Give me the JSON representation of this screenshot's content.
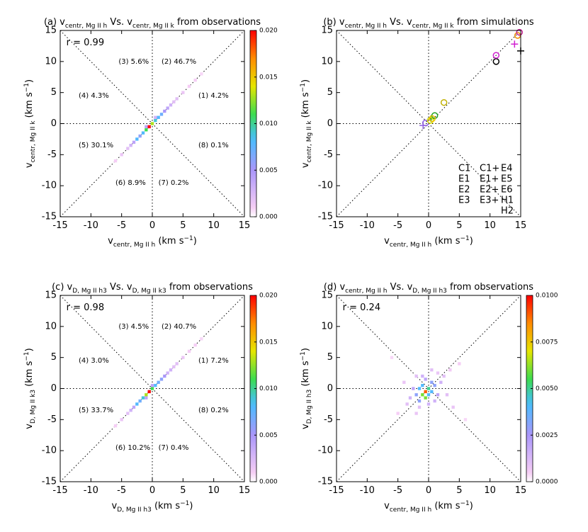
{
  "chart_data": [
    {
      "type": "heatmap",
      "title": [
        {
          "text": "(a) v"
        },
        {
          "text": "centr, Mg II h",
          "shift": "sub"
        },
        {
          "text": " Vs. v"
        },
        {
          "text": "centr, Mg II k",
          "shift": "sub"
        },
        {
          "text": " from observations"
        }
      ],
      "xlabel": [
        {
          "text": "v"
        },
        {
          "text": "centr, Mg II h",
          "shift": "sub"
        },
        {
          "text": " (km s"
        },
        {
          "text": "−1",
          "shift": "sup"
        },
        {
          "text": ")"
        }
      ],
      "ylabel": [
        {
          "text": "v"
        },
        {
          "text": "centr, Mg II k",
          "shift": "sub"
        },
        {
          "text": " (km s"
        },
        {
          "text": "−1",
          "shift": "sup"
        },
        {
          "text": ")"
        }
      ],
      "xlim": [
        -15,
        15
      ],
      "ylim": [
        -15,
        15
      ],
      "xticks": [
        -15,
        -10,
        -5,
        0,
        5,
        10,
        15
      ],
      "yticks": [
        -15,
        -10,
        -5,
        0,
        5,
        10,
        15
      ],
      "clim": [
        0,
        0.02
      ],
      "cticks": [
        {
          "value": 0,
          "label": "0.000"
        },
        {
          "value": 0.005,
          "label": "0.005"
        },
        {
          "value": 0.01,
          "label": "0.010"
        },
        {
          "value": 0.015,
          "label": "0.015"
        },
        {
          "value": 0.02,
          "label": "0.020"
        }
      ],
      "x": [
        -0.5,
        0,
        -1,
        0.5,
        -1.5,
        1,
        -2,
        1.5,
        -2.5,
        2,
        -3,
        2.5,
        3,
        -3.5,
        3.5,
        4,
        -4,
        5,
        -5,
        6,
        7,
        -6,
        8,
        0.5,
        -1
      ],
      "y": [
        -0.5,
        0,
        -1,
        0.5,
        -1.5,
        1,
        -2,
        1.5,
        -2.5,
        2,
        -3,
        2.5,
        3,
        -3.5,
        3.5,
        4,
        -4,
        5,
        -5,
        6,
        7,
        -6,
        8,
        1,
        -0.5
      ],
      "values": [
        0.02,
        0.013,
        0.011,
        0.009,
        0.008,
        0.008,
        0.006,
        0.007,
        0.008,
        0.005,
        0.004,
        0.004,
        0.003,
        0.003,
        0.002,
        0.002,
        0.002,
        0.0015,
        0.0015,
        0.001,
        0.001,
        0.001,
        0.0008,
        0.003,
        0.004
      ],
      "annotations": [
        {
          "text": "r = 0.99",
          "x": -14,
          "y": 13
        },
        {
          "text": "(3)  5.6%",
          "x": -5.5,
          "y": 10
        },
        {
          "text": "(2)  46.7%",
          "x": 1.5,
          "y": 10
        },
        {
          "text": "(4)  4.3%",
          "x": -12,
          "y": 4.5
        },
        {
          "text": "(1)  4.2%",
          "x": 7.5,
          "y": 4.5
        },
        {
          "text": "(5)  30.1%",
          "x": -12,
          "y": -3.5
        },
        {
          "text": "(8)  0.1%",
          "x": 7.5,
          "y": -3.5
        },
        {
          "text": "(6)  8.9%",
          "x": -6,
          "y": -9.5
        },
        {
          "text": "(7)  0.2%",
          "x": 1,
          "y": -9.5
        }
      ]
    },
    {
      "type": "scatter",
      "title": [
        {
          "text": "(b) v"
        },
        {
          "text": "centr, Mg II h",
          "shift": "sub"
        },
        {
          "text": " Vs. v"
        },
        {
          "text": "centr, Mg II k",
          "shift": "sub"
        },
        {
          "text": " from simulations"
        }
      ],
      "xlabel": [
        {
          "text": "v"
        },
        {
          "text": "centr, Mg II h",
          "shift": "sub"
        },
        {
          "text": " (km s"
        },
        {
          "text": "−1",
          "shift": "sup"
        },
        {
          "text": ")"
        }
      ],
      "ylabel": [
        {
          "text": "v"
        },
        {
          "text": "centr, Mg II k",
          "shift": "sub"
        },
        {
          "text": " (km s"
        },
        {
          "text": "−1",
          "shift": "sup"
        },
        {
          "text": ")"
        }
      ],
      "xlim": [
        -15,
        15
      ],
      "ylim": [
        -15,
        15
      ],
      "xticks": [
        -15,
        -10,
        -5,
        0,
        5,
        10,
        15
      ],
      "yticks": [
        -15,
        -10,
        -5,
        0,
        5,
        10,
        15
      ],
      "series": [
        {
          "name": "C1",
          "color": "#000000",
          "marker": "o",
          "x": [
            11
          ],
          "y": [
            10
          ]
        },
        {
          "name": "E1",
          "color": "#d020d0",
          "marker": "o",
          "x": [
            11
          ],
          "y": [
            11
          ]
        },
        {
          "name": "E2",
          "color": "#9060e0",
          "marker": "o",
          "x": [
            -0.5
          ],
          "y": [
            0.1
          ]
        },
        {
          "name": "E3",
          "color": "#20a020",
          "marker": "o",
          "x": [
            1
          ],
          "y": [
            1.3
          ]
        },
        {
          "name": "C1+",
          "color": "#000000",
          "marker": "+",
          "x": [
            15
          ],
          "y": [
            11.7
          ]
        },
        {
          "name": "E1+",
          "color": "#d020d0",
          "marker": "+",
          "x": [
            14
          ],
          "y": [
            12.8
          ]
        },
        {
          "name": "E2+",
          "color": "#9060e0",
          "marker": "+",
          "x": [
            -0.9
          ],
          "y": [
            -0.3
          ]
        },
        {
          "name": "E3+",
          "color": "#20a020",
          "marker": "+",
          "x": [
            0.4
          ],
          "y": [
            0.8
          ]
        },
        {
          "name": "E4",
          "color": "#c0b000",
          "marker": "o",
          "x": [
            2.5
          ],
          "y": [
            3.4
          ]
        },
        {
          "name": "E5",
          "color": "#e0e000",
          "marker": "o",
          "x": [
            0.3
          ],
          "y": [
            0.5
          ]
        },
        {
          "name": "E6",
          "color": "#f0c000",
          "marker": "o",
          "x": [
            0.6
          ],
          "y": [
            0.8
          ]
        },
        {
          "name": "H1",
          "color": "#f09000",
          "marker": "o",
          "x": [
            14.5
          ],
          "y": [
            14.2
          ]
        },
        {
          "name": "H2",
          "color": "#c02090",
          "marker": "o",
          "x": [
            14.8
          ],
          "y": [
            14.7
          ]
        }
      ]
    },
    {
      "type": "heatmap",
      "title": [
        {
          "text": "(c) v"
        },
        {
          "text": "D, Mg II h3",
          "shift": "sub"
        },
        {
          "text": " Vs. v"
        },
        {
          "text": "D, Mg II k3",
          "shift": "sub"
        },
        {
          "text": " from observations"
        }
      ],
      "xlabel": [
        {
          "text": "v"
        },
        {
          "text": "D, Mg II h3",
          "shift": "sub"
        },
        {
          "text": " (km s"
        },
        {
          "text": "−1",
          "shift": "sup"
        },
        {
          "text": ")"
        }
      ],
      "ylabel": [
        {
          "text": "v"
        },
        {
          "text": "D, Mg II k3",
          "shift": "sub"
        },
        {
          "text": " (km s"
        },
        {
          "text": "−1",
          "shift": "sup"
        },
        {
          "text": ")"
        }
      ],
      "xlim": [
        -15,
        15
      ],
      "ylim": [
        -15,
        15
      ],
      "xticks": [
        -15,
        -10,
        -5,
        0,
        5,
        10,
        15
      ],
      "yticks": [
        -15,
        -10,
        -5,
        0,
        5,
        10,
        15
      ],
      "clim": [
        0,
        0.02
      ],
      "cticks": [
        {
          "value": 0,
          "label": "0.000"
        },
        {
          "value": 0.005,
          "label": "0.005"
        },
        {
          "value": 0.01,
          "label": "0.010"
        },
        {
          "value": 0.015,
          "label": "0.015"
        },
        {
          "value": 0.02,
          "label": "0.020"
        }
      ],
      "x": [
        -0.5,
        0,
        -1,
        0.5,
        -1.5,
        1,
        -2,
        1.5,
        -2.5,
        2,
        -3,
        2.5,
        3,
        -3.5,
        3.5,
        4,
        -4,
        5,
        -5,
        6,
        7,
        -6,
        8,
        0,
        -1
      ],
      "y": [
        -0.5,
        0,
        -1,
        0.5,
        -1.5,
        1,
        -2,
        1.5,
        -2.5,
        2,
        -3,
        2.5,
        3,
        -3.5,
        3.5,
        4,
        -4,
        5,
        -5,
        6,
        7,
        -6,
        8,
        0.5,
        -1.5
      ],
      "values": [
        0.02,
        0.011,
        0.013,
        0.008,
        0.009,
        0.007,
        0.007,
        0.006,
        0.008,
        0.005,
        0.004,
        0.003,
        0.003,
        0.003,
        0.002,
        0.002,
        0.002,
        0.0015,
        0.0015,
        0.001,
        0.001,
        0.001,
        0.0008,
        0.004,
        0.004
      ],
      "annotations": [
        {
          "text": "r = 0.98",
          "x": -14,
          "y": 13
        },
        {
          "text": "(3)  4.5%",
          "x": -5.5,
          "y": 10
        },
        {
          "text": "(2)  40.7%",
          "x": 1.5,
          "y": 10
        },
        {
          "text": "(4)  3.0%",
          "x": -12,
          "y": 4.5
        },
        {
          "text": "(1)  7.2%",
          "x": 7.5,
          "y": 4.5
        },
        {
          "text": "(5)  33.7%",
          "x": -12,
          "y": -3.5
        },
        {
          "text": "(8)  0.2%",
          "x": 7.5,
          "y": -3.5
        },
        {
          "text": "(6)  10.2%",
          "x": -6,
          "y": -9.5
        },
        {
          "text": "(7)  0.4%",
          "x": 1,
          "y": -9.5
        }
      ]
    },
    {
      "type": "heatmap",
      "title": [
        {
          "text": "(d) v"
        },
        {
          "text": "centr, Mg II h",
          "shift": "sub"
        },
        {
          "text": " Vs. v"
        },
        {
          "text": "D, Mg II h3",
          "shift": "sub"
        },
        {
          "text": " from observations"
        }
      ],
      "xlabel": [
        {
          "text": "v"
        },
        {
          "text": "centr, Mg II h",
          "shift": "sub"
        },
        {
          "text": " (km s"
        },
        {
          "text": "−1",
          "shift": "sup"
        },
        {
          "text": ")"
        }
      ],
      "ylabel": [
        {
          "text": "v"
        },
        {
          "text": "D, Mg II h3",
          "shift": "sub"
        },
        {
          "text": " (km s"
        },
        {
          "text": "−1",
          "shift": "sup"
        },
        {
          "text": ")"
        }
      ],
      "xlim": [
        -15,
        15
      ],
      "ylim": [
        -15,
        15
      ],
      "xticks": [
        -15,
        -10,
        -5,
        0,
        5,
        10,
        15
      ],
      "yticks": [
        -15,
        -10,
        -5,
        0,
        5,
        10,
        15
      ],
      "clim": [
        0,
        0.01
      ],
      "cticks": [
        {
          "value": 0,
          "label": "0.0000"
        },
        {
          "value": 0.0025,
          "label": "0.0025"
        },
        {
          "value": 0.005,
          "label": "0.0050"
        },
        {
          "value": 0.0075,
          "label": "0.0075"
        },
        {
          "value": 0.01,
          "label": "0.0100"
        }
      ],
      "x": [
        -0.5,
        -1,
        0,
        -0.5,
        -1.5,
        0.5,
        -1,
        0,
        -2,
        1,
        -1.5,
        0.5,
        -2.5,
        1.5,
        -3,
        2,
        -0.5,
        0,
        -1,
        1,
        -2,
        2.5,
        -3.5,
        3,
        0.5,
        -4,
        4,
        -1.5,
        1.5,
        -2,
        3.5,
        -5,
        5,
        -6,
        6
      ],
      "y": [
        -0.5,
        -1,
        0,
        -1.5,
        0,
        -0.5,
        0.5,
        -1,
        -1,
        0.5,
        -2,
        1,
        0,
        -1,
        -1.5,
        1,
        1.5,
        -2.5,
        2,
        -2,
        2,
        2,
        -2.5,
        -1,
        3,
        1,
        -3,
        -3,
        2.5,
        -4,
        3,
        -4,
        4,
        5,
        -5
      ],
      "values": [
        0.009,
        0.006,
        0.005,
        0.006,
        0.004,
        0.004,
        0.004,
        0.004,
        0.003,
        0.003,
        0.003,
        0.003,
        0.002,
        0.002,
        0.0015,
        0.0015,
        0.002,
        0.0015,
        0.0015,
        0.0015,
        0.001,
        0.001,
        0.001,
        0.001,
        0.001,
        0.0008,
        0.0008,
        0.001,
        0.0008,
        0.0008,
        0.0006,
        0.0005,
        0.0005,
        0.0004,
        0.0004
      ],
      "annotations": [
        {
          "text": "r = 0.24",
          "x": -14,
          "y": 13
        }
      ]
    }
  ]
}
